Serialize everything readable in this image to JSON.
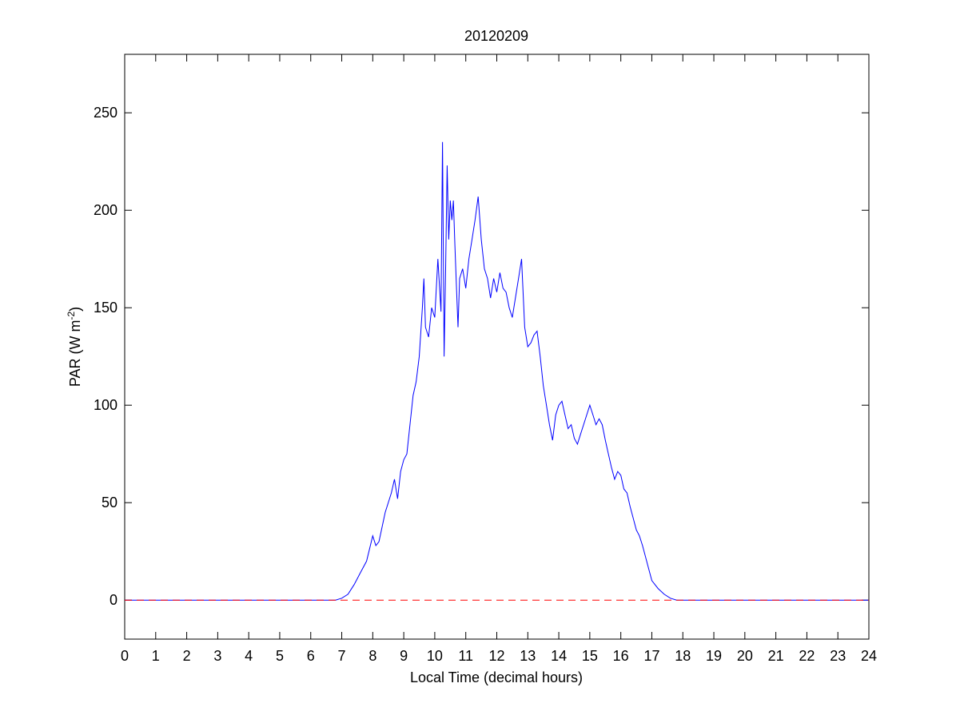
{
  "chart_data": {
    "type": "line",
    "title": "20120209",
    "xlabel": "Local Time (decimal hours)",
    "ylabel": {
      "main": "PAR (W m",
      "superscript": "-2",
      "close": ")"
    },
    "xlim": [
      0,
      24
    ],
    "ylim": [
      -20,
      280
    ],
    "xticks": [
      0,
      1,
      2,
      3,
      4,
      5,
      6,
      7,
      8,
      9,
      10,
      11,
      12,
      13,
      14,
      15,
      16,
      17,
      18,
      19,
      20,
      21,
      22,
      23,
      24
    ],
    "yticks": [
      0,
      50,
      100,
      150,
      200,
      250
    ],
    "grid": false,
    "series": [
      {
        "color": "#0000ff",
        "style": "solid",
        "x": [
          0,
          6.8,
          7.0,
          7.2,
          7.4,
          7.6,
          7.8,
          8.0,
          8.1,
          8.2,
          8.4,
          8.6,
          8.7,
          8.8,
          8.9,
          9.0,
          9.1,
          9.2,
          9.3,
          9.4,
          9.5,
          9.6,
          9.65,
          9.7,
          9.8,
          9.9,
          10.0,
          10.1,
          10.2,
          10.25,
          10.3,
          10.35,
          10.4,
          10.45,
          10.5,
          10.55,
          10.6,
          10.65,
          10.7,
          10.75,
          10.8,
          10.9,
          11.0,
          11.1,
          11.2,
          11.3,
          11.4,
          11.5,
          11.6,
          11.7,
          11.8,
          11.9,
          12.0,
          12.1,
          12.2,
          12.3,
          12.4,
          12.5,
          12.6,
          12.7,
          12.8,
          12.9,
          13.0,
          13.1,
          13.2,
          13.3,
          13.4,
          13.5,
          13.6,
          13.7,
          13.8,
          13.9,
          14.0,
          14.1,
          14.2,
          14.3,
          14.4,
          14.5,
          14.6,
          14.7,
          14.8,
          14.9,
          15.0,
          15.1,
          15.2,
          15.3,
          15.4,
          15.5,
          15.6,
          15.7,
          15.8,
          15.9,
          16.0,
          16.1,
          16.2,
          16.3,
          16.4,
          16.5,
          16.6,
          16.7,
          16.8,
          16.9,
          17.0,
          17.2,
          17.4,
          17.6,
          17.8,
          18.0,
          24
        ],
        "y": [
          0,
          0,
          1,
          3,
          8,
          14,
          20,
          33,
          28,
          30,
          45,
          55,
          62,
          52,
          66,
          72,
          75,
          90,
          105,
          112,
          125,
          150,
          165,
          140,
          135,
          150,
          145,
          175,
          148,
          235,
          125,
          170,
          223,
          185,
          205,
          195,
          205,
          182,
          160,
          140,
          165,
          170,
          160,
          175,
          185,
          195,
          207,
          185,
          170,
          165,
          155,
          165,
          158,
          168,
          160,
          158,
          150,
          145,
          155,
          165,
          175,
          140,
          130,
          132,
          136,
          138,
          125,
          110,
          100,
          90,
          82,
          95,
          100,
          102,
          95,
          88,
          90,
          83,
          80,
          85,
          90,
          95,
          100,
          95,
          90,
          93,
          90,
          82,
          75,
          68,
          62,
          66,
          64,
          57,
          55,
          48,
          42,
          36,
          33,
          28,
          22,
          16,
          10,
          6,
          3,
          1,
          0,
          0,
          0
        ]
      },
      {
        "color": "#ff0000",
        "style": "dashed",
        "x": [
          0,
          24
        ],
        "y": [
          0,
          0
        ]
      }
    ]
  }
}
